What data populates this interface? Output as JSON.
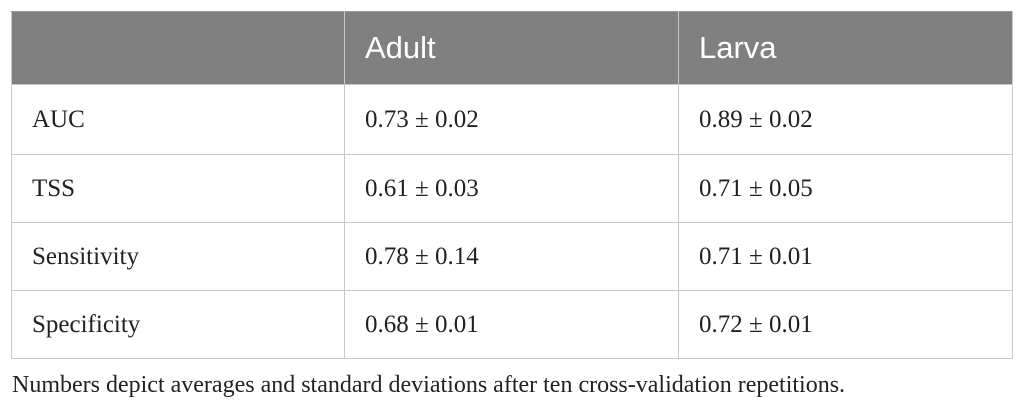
{
  "table": {
    "headers": [
      "",
      "Adult",
      "Larva"
    ],
    "rows": [
      {
        "label": "AUC",
        "adult": "0.73 ± 0.02",
        "larva": "0.89 ± 0.02"
      },
      {
        "label": "TSS",
        "adult": "0.61 ± 0.03",
        "larva": "0.71 ± 0.05"
      },
      {
        "label": "Sensitivity",
        "adult": "0.78 ± 0.14",
        "larva": "0.71 ± 0.01"
      },
      {
        "label": "Specificity",
        "adult": "0.68 ± 0.01",
        "larva": "0.72 ± 0.01"
      }
    ]
  },
  "caption": "Numbers depict averages and standard deviations after ten cross-validation repetitions.",
  "colors": {
    "header_bg": "#808080",
    "header_text": "#ffffff",
    "border": "#c8c8c8",
    "text": "#222222"
  }
}
